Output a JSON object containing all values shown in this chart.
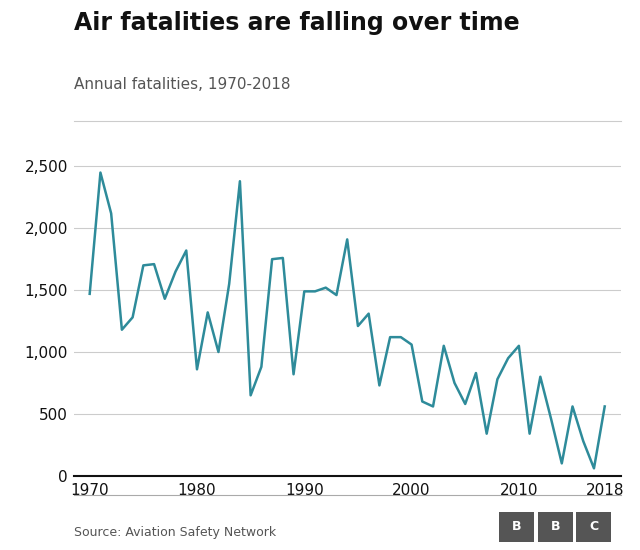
{
  "title": "Air fatalities are falling over time",
  "subtitle": "Annual fatalities, 1970-2018",
  "source": "Source: Aviation Safety Network",
  "line_color": "#2e8b9a",
  "background_color": "#ffffff",
  "years": [
    1970,
    1971,
    1972,
    1973,
    1974,
    1975,
    1976,
    1977,
    1978,
    1979,
    1980,
    1981,
    1982,
    1983,
    1984,
    1985,
    1986,
    1987,
    1988,
    1989,
    1990,
    1991,
    1992,
    1993,
    1994,
    1995,
    1996,
    1997,
    1998,
    1999,
    2000,
    2001,
    2002,
    2003,
    2004,
    2005,
    2006,
    2007,
    2008,
    2009,
    2010,
    2011,
    2012,
    2013,
    2014,
    2015,
    2016,
    2017,
    2018
  ],
  "fatalities": [
    1470,
    2450,
    2120,
    1180,
    1280,
    1700,
    1710,
    1430,
    1650,
    1820,
    860,
    1320,
    1000,
    1550,
    2380,
    650,
    880,
    1750,
    1760,
    820,
    1490,
    1490,
    1520,
    1460,
    1910,
    1210,
    1310,
    730,
    1120,
    1120,
    1060,
    600,
    560,
    1050,
    750,
    580,
    830,
    340,
    780,
    950,
    1050,
    340,
    800,
    460,
    100,
    560,
    280,
    60,
    560
  ],
  "ylim": [
    0,
    2600
  ],
  "yticks": [
    0,
    500,
    1000,
    1500,
    2000,
    2500
  ],
  "xticks": [
    1970,
    1980,
    1990,
    2000,
    2010,
    2018
  ],
  "xlim": [
    1968.5,
    2019.5
  ],
  "line_width": 1.8,
  "title_fontsize": 17,
  "subtitle_fontsize": 11,
  "tick_fontsize": 11,
  "source_fontsize": 9,
  "grid_color": "#cccccc",
  "axis_color": "#111111",
  "text_color": "#111111",
  "subtext_color": "#555555"
}
